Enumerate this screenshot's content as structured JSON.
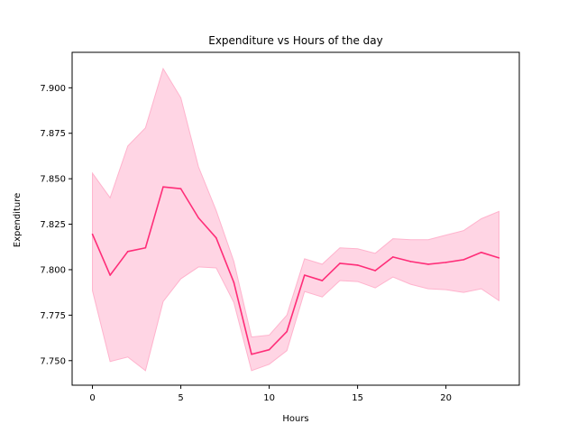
{
  "chart_data": {
    "type": "line",
    "title": "Expenditure vs Hours of the day",
    "xlabel": "Hours",
    "ylabel": "Expenditure",
    "xlim": [
      -1.15,
      24.15
    ],
    "ylim": [
      7.7365,
      7.9195
    ],
    "xticks": [
      0,
      5,
      10,
      15,
      20
    ],
    "xtick_labels": [
      "0",
      "5",
      "10",
      "15",
      "20"
    ],
    "yticks": [
      7.75,
      7.775,
      7.8,
      7.825,
      7.85,
      7.875,
      7.9
    ],
    "ytick_labels": [
      "7.750",
      "7.775",
      "7.800",
      "7.825",
      "7.850",
      "7.875",
      "7.900"
    ],
    "grid": false,
    "series": [
      {
        "color": "#ff2d78",
        "band_color": "#ffb3cd",
        "x": [
          0,
          1,
          2,
          3,
          4,
          5,
          6,
          7,
          8,
          9,
          10,
          11,
          12,
          13,
          14,
          15,
          16,
          17,
          18,
          19,
          20,
          21,
          22,
          23
        ],
        "y": [
          7.8195,
          7.797,
          7.81,
          7.812,
          7.8455,
          7.8445,
          7.8285,
          7.8175,
          7.793,
          7.7535,
          7.756,
          7.766,
          7.797,
          7.794,
          7.8035,
          7.8025,
          7.7995,
          7.807,
          7.8045,
          7.803,
          7.804,
          7.8055,
          7.8095,
          7.8065
        ],
        "lower": [
          7.7885,
          7.7495,
          7.752,
          7.7445,
          7.7825,
          7.795,
          7.8015,
          7.801,
          7.782,
          7.7445,
          7.748,
          7.7555,
          7.788,
          7.785,
          7.794,
          7.7935,
          7.79,
          7.796,
          7.792,
          7.7895,
          7.789,
          7.7875,
          7.7895,
          7.783
        ],
        "upper": [
          7.853,
          7.8395,
          7.868,
          7.878,
          7.9105,
          7.8945,
          7.8565,
          7.8325,
          7.8045,
          7.763,
          7.764,
          7.775,
          7.806,
          7.803,
          7.812,
          7.8115,
          7.809,
          7.817,
          7.8165,
          7.8165,
          7.819,
          7.8215,
          7.828,
          7.832
        ]
      }
    ]
  }
}
